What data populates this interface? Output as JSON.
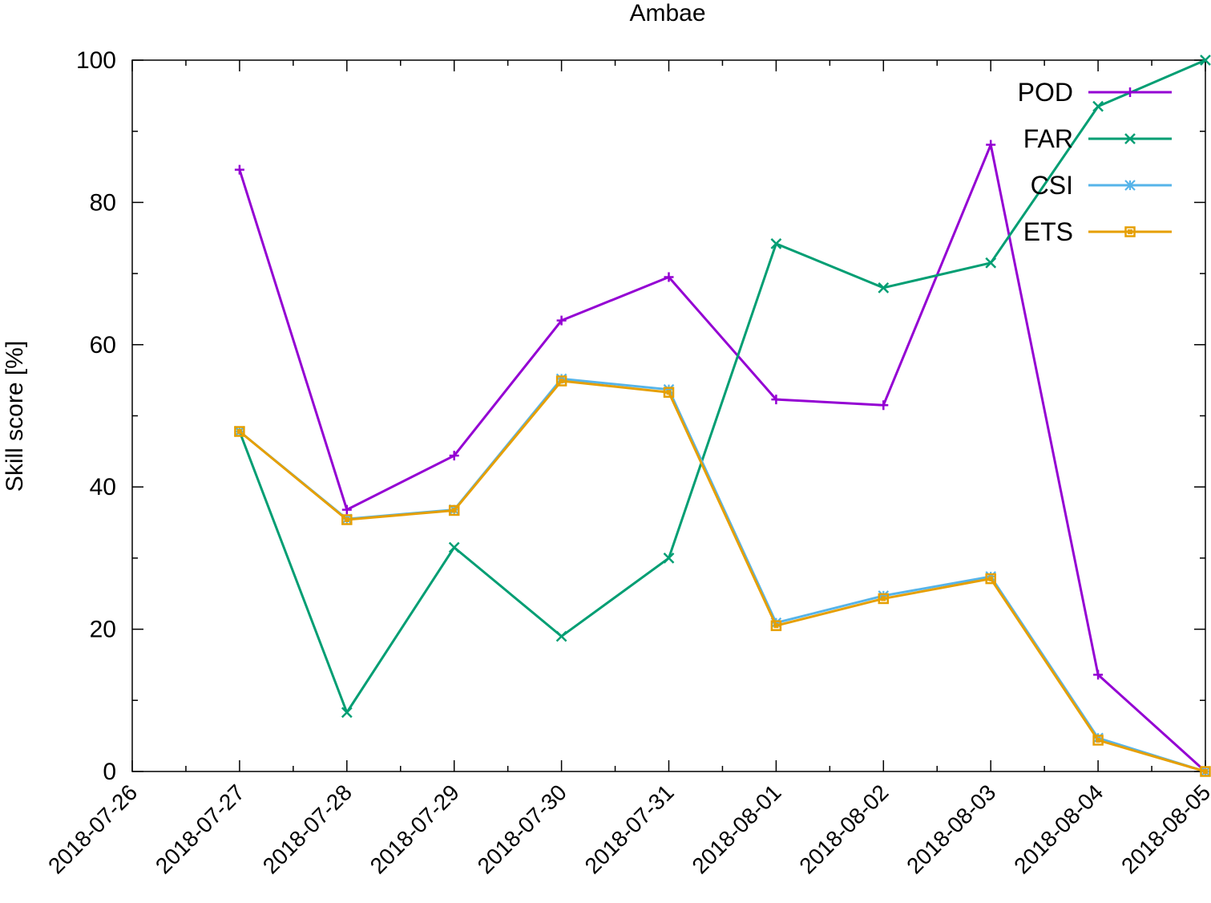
{
  "chart_data": {
    "type": "line",
    "title": "Ambae",
    "xlabel": "",
    "ylabel": "Skill score [%]",
    "x_ticks": [
      "2018-07-26",
      "2018-07-27",
      "2018-07-28",
      "2018-07-29",
      "2018-07-30",
      "2018-07-31",
      "2018-08-01",
      "2018-08-02",
      "2018-08-03",
      "2018-08-04",
      "2018-08-05"
    ],
    "x": [
      "2018-07-27",
      "2018-07-28",
      "2018-07-29",
      "2018-07-30",
      "2018-07-31",
      "2018-08-01",
      "2018-08-02",
      "2018-08-03",
      "2018-08-04",
      "2018-08-05"
    ],
    "xlim": [
      "2018-07-26",
      "2018-08-05"
    ],
    "ylim": [
      0,
      100
    ],
    "y_ticks": [
      0,
      20,
      40,
      60,
      80,
      100
    ],
    "grid": false,
    "legend_position": "top-right",
    "series": [
      {
        "name": "POD",
        "color": "#9400d3",
        "marker": "plus",
        "values": [
          84.6,
          36.8,
          44.4,
          63.4,
          69.5,
          52.3,
          51.5,
          88.1,
          13.6,
          0
        ]
      },
      {
        "name": "FAR",
        "color": "#009e73",
        "marker": "cross",
        "values": [
          47.8,
          8.3,
          31.5,
          19.0,
          30.0,
          74.2,
          68.0,
          71.5,
          93.5,
          100
        ]
      },
      {
        "name": "CSI",
        "color": "#56b4e9",
        "marker": "star",
        "values": [
          47.8,
          35.5,
          36.8,
          55.2,
          53.7,
          20.9,
          24.7,
          27.4,
          4.7,
          0
        ]
      },
      {
        "name": "ETS",
        "color": "#e69f00",
        "marker": "square",
        "values": [
          47.8,
          35.4,
          36.7,
          54.9,
          53.3,
          20.5,
          24.3,
          27.1,
          4.4,
          0
        ]
      }
    ]
  }
}
